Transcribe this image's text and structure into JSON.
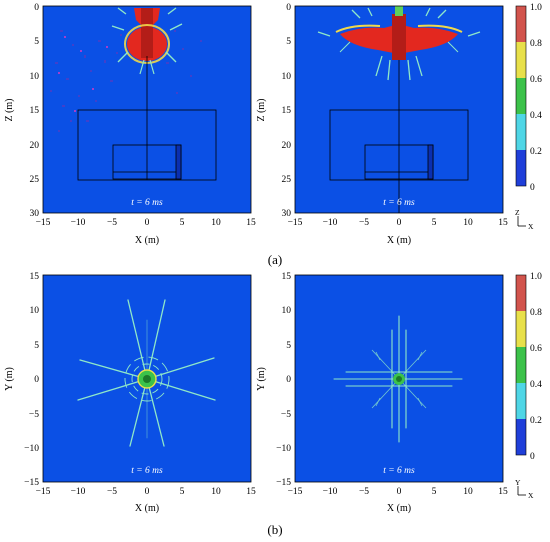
{
  "figure": {
    "panels": [
      {
        "id": "a-left",
        "xlabel": "X (m)",
        "ylabel": "Z (m)",
        "time_label": "t = 6 ms",
        "xticks": [
          "−15",
          "−10",
          "−5",
          "0",
          "5",
          "10",
          "15"
        ],
        "yticks": [
          "0",
          "5",
          "10",
          "15",
          "20",
          "25",
          "30"
        ]
      },
      {
        "id": "a-right",
        "xlabel": "X (m)",
        "ylabel": "Z (m)",
        "time_label": "t = 6 ms",
        "xticks": [
          "−15",
          "−10",
          "−5",
          "0",
          "5",
          "10",
          "15"
        ],
        "yticks": [
          "0",
          "5",
          "10",
          "15",
          "20",
          "25",
          "30"
        ]
      },
      {
        "id": "b-left",
        "xlabel": "X (m)",
        "ylabel": "Y (m)",
        "time_label": "t = 6 ms",
        "xticks": [
          "−15",
          "−10",
          "−5",
          "0",
          "5",
          "10",
          "15"
        ],
        "yticks": [
          "15",
          "10",
          "5",
          "0",
          "−5",
          "−10",
          "−15"
        ]
      },
      {
        "id": "b-right",
        "xlabel": "X (m)",
        "ylabel": "Y (m)",
        "time_label": "t = 6 ms",
        "xticks": [
          "−15",
          "−10",
          "−5",
          "0",
          "5",
          "10",
          "15"
        ],
        "yticks": [
          "15",
          "10",
          "5",
          "0",
          "−5",
          "−10",
          "−15"
        ]
      }
    ],
    "colorbar_ticks": [
      "1.0",
      "0.8",
      "0.6",
      "0.4",
      "0.2",
      "0"
    ],
    "colorbar_colors": [
      "#d2544d",
      "#e8e04a",
      "#3cc24a",
      "#4fd6e6",
      "#1f3fd9"
    ],
    "field_color": "#0b50e5",
    "damage_color": "#e3281f",
    "crack_color": "#8fe8c8",
    "subfigure_labels": {
      "a": "(a)",
      "b": "(b)"
    },
    "axis_triads": {
      "top": {
        "vertical": "Z",
        "horizontal": "X"
      },
      "bottom": {
        "vertical": "Y",
        "horizontal": "X"
      }
    }
  }
}
